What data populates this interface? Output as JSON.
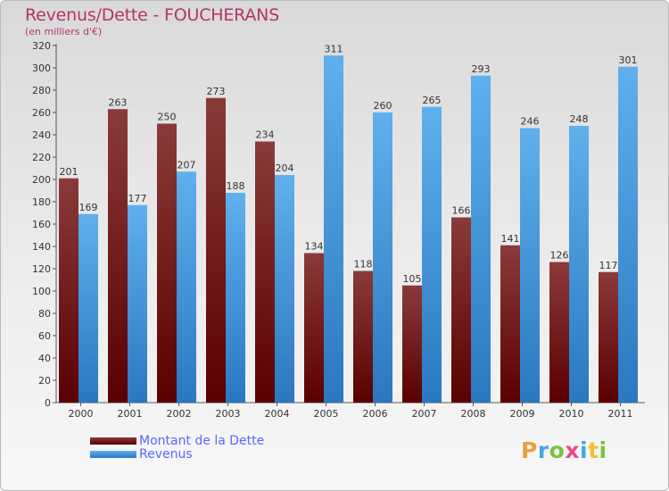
{
  "title": "Revenus/Dette - FOUCHERANS",
  "subtitle": "(en milliers d'€)",
  "logo": {
    "letters": [
      "P",
      "r",
      "o",
      "x",
      "i",
      "t",
      "i"
    ],
    "colors": [
      "#e8a03a",
      "#3fa9e0",
      "#7cc242",
      "#e84a8a",
      "#3fa9e0",
      "#f0c030",
      "#7cc242"
    ]
  },
  "colors": {
    "dette_top": "#8a3a3a",
    "dette_bottom": "#5a0000",
    "revenus_top": "#5fb0ec",
    "revenus_bottom": "#2a78c0",
    "title": "#b3346a",
    "legend_text": "#5b66ff"
  },
  "chart_data": {
    "type": "bar",
    "title": "Revenus/Dette - FOUCHERANS",
    "subtitle": "(en milliers d'€)",
    "categories": [
      "2000",
      "2001",
      "2002",
      "2003",
      "2004",
      "2005",
      "2006",
      "2007",
      "2008",
      "2009",
      "2010",
      "2011"
    ],
    "series": [
      {
        "name": "Montant de la Dette",
        "values": [
          201,
          263,
          250,
          273,
          234,
          134,
          118,
          105,
          166,
          141,
          126,
          117
        ]
      },
      {
        "name": "Revenus",
        "values": [
          169,
          177,
          207,
          188,
          204,
          311,
          260,
          265,
          293,
          246,
          248,
          301
        ]
      }
    ],
    "ylim": [
      0,
      320
    ],
    "yticks": [
      0,
      20,
      40,
      60,
      80,
      100,
      120,
      140,
      160,
      180,
      200,
      220,
      240,
      260,
      280,
      300,
      320
    ],
    "grid": false,
    "legend_position": "bottom-left"
  }
}
